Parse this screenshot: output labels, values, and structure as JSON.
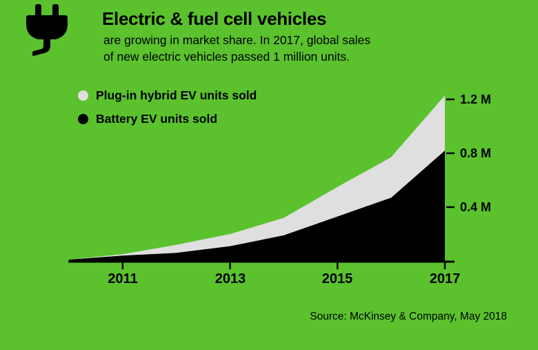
{
  "colors": {
    "background": "#5bc22e",
    "battery_area": "#000000",
    "hybrid_area": "#dfdfdf",
    "text": "#000000"
  },
  "header": {
    "title": "Electric & fuel cell vehicles",
    "subtitle_lines": [
      "are growing in market share. In 2017, global sales",
      "of new electric vehicles passed 1 million units."
    ]
  },
  "legend": [
    {
      "label": "Plug-in hybrid EV units sold",
      "color": "#dfdfdf"
    },
    {
      "label": "Battery EV units sold",
      "color": "#000000"
    }
  ],
  "chart_data": {
    "type": "area",
    "stacked": true,
    "title": "Electric & fuel cell vehicles",
    "x": [
      2010,
      2011,
      2012,
      2013,
      2014,
      2015,
      2016,
      2017
    ],
    "series": [
      {
        "name": "Battery EV units sold",
        "color": "#000000",
        "values": [
          0.01,
          0.04,
          0.06,
          0.11,
          0.19,
          0.33,
          0.47,
          0.82
        ]
      },
      {
        "name": "Plug-in hybrid EV units sold",
        "color": "#dfdfdf",
        "values": [
          0.0,
          0.01,
          0.06,
          0.09,
          0.13,
          0.22,
          0.3,
          0.41
        ]
      }
    ],
    "totals": [
      0.01,
      0.05,
      0.12,
      0.2,
      0.32,
      0.55,
      0.77,
      1.23
    ],
    "unit": "million units",
    "ylim": [
      0,
      1.3
    ],
    "y_ticks": [
      {
        "value": 0.4,
        "label": "0.4 M"
      },
      {
        "value": 0.8,
        "label": "0.8 M"
      },
      {
        "value": 1.2,
        "label": "1.2 M"
      }
    ],
    "x_ticks": [
      2011,
      2013,
      2015,
      2017
    ],
    "legend_position": "top-left",
    "grid": false
  },
  "footer": {
    "source": "Source: McKinsey & Company, May 2018"
  }
}
